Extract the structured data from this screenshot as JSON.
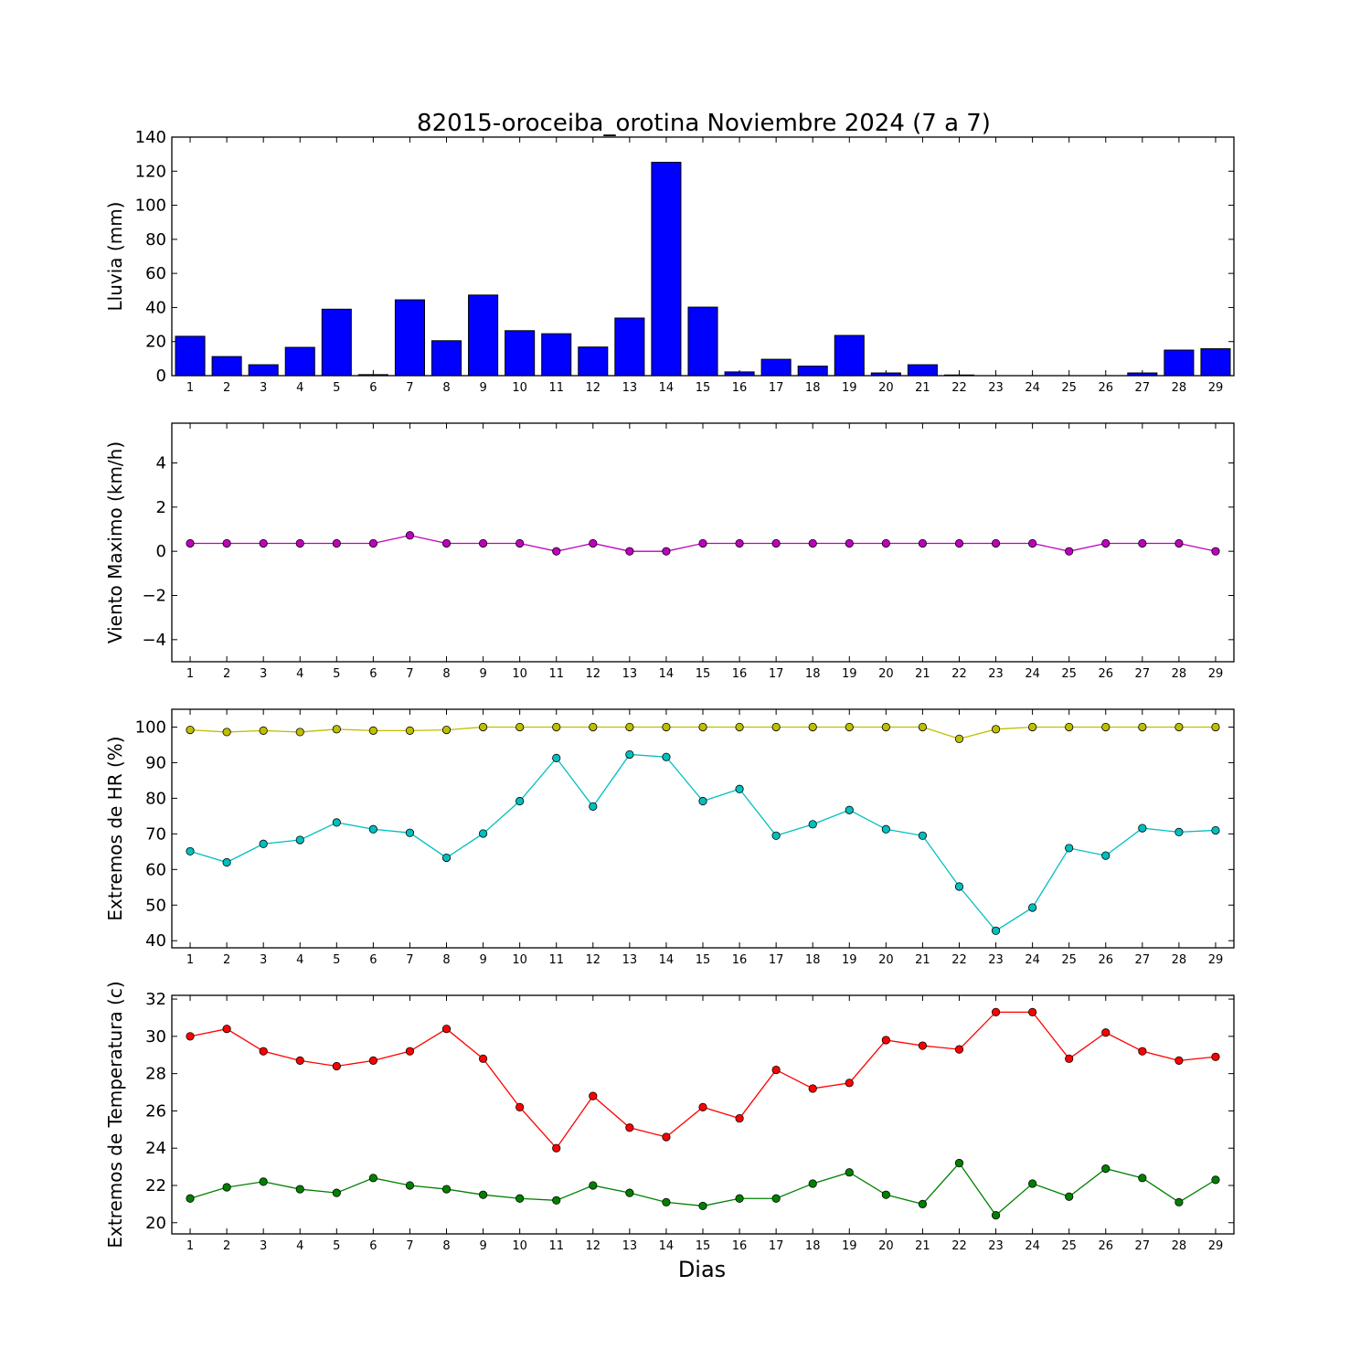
{
  "title": "82015-oroceiba_orotina Noviembre 2024  (7 a 7)",
  "xlabel": "Dias",
  "chart_data": [
    {
      "type": "bar",
      "ylabel": "Lluvia (mm)",
      "ylim": [
        0,
        140
      ],
      "yticks": [
        0,
        20,
        40,
        60,
        80,
        100,
        120,
        140
      ],
      "color": "#0000ff",
      "categories": [
        1,
        2,
        3,
        4,
        5,
        6,
        7,
        8,
        9,
        10,
        11,
        12,
        13,
        14,
        15,
        16,
        17,
        18,
        19,
        20,
        21,
        22,
        23,
        24,
        25,
        26,
        27,
        28,
        29
      ],
      "values": [
        23.1,
        11.2,
        6.4,
        16.6,
        39.0,
        0.6,
        44.5,
        20.5,
        47.3,
        26.4,
        24.6,
        16.8,
        33.8,
        125.2,
        40.2,
        2.2,
        9.6,
        5.6,
        23.6,
        1.6,
        6.4,
        0.4,
        0.0,
        0.0,
        0.0,
        0.0,
        1.6,
        15.0,
        15.8
      ]
    },
    {
      "type": "line",
      "ylabel": "Viento Maximo (km/h)",
      "ylim": [
        -5,
        5.8
      ],
      "yticks": [
        -4,
        -2,
        0,
        2,
        4
      ],
      "x": [
        1,
        2,
        3,
        4,
        5,
        6,
        7,
        8,
        9,
        10,
        11,
        12,
        13,
        14,
        15,
        16,
        17,
        18,
        19,
        20,
        21,
        22,
        23,
        24,
        25,
        26,
        27,
        28,
        29
      ],
      "series": [
        {
          "color": "#bf00bf",
          "values": [
            0.36,
            0.36,
            0.36,
            0.36,
            0.36,
            0.36,
            0.72,
            0.36,
            0.36,
            0.36,
            0.0,
            0.36,
            0.0,
            0.0,
            0.36,
            0.36,
            0.36,
            0.36,
            0.36,
            0.36,
            0.36,
            0.36,
            0.36,
            0.36,
            0.0,
            0.36,
            0.36,
            0.36,
            0.0
          ]
        }
      ]
    },
    {
      "type": "line",
      "ylabel": "Extremos de HR (%)",
      "ylim": [
        38,
        105
      ],
      "yticks": [
        40,
        50,
        60,
        70,
        80,
        90,
        100
      ],
      "x": [
        1,
        2,
        3,
        4,
        5,
        6,
        7,
        8,
        9,
        10,
        11,
        12,
        13,
        14,
        15,
        16,
        17,
        18,
        19,
        20,
        21,
        22,
        23,
        24,
        25,
        26,
        27,
        28,
        29
      ],
      "series": [
        {
          "color": "#bfbf00",
          "values": [
            99.2,
            98.6,
            99.0,
            98.6,
            99.4,
            99.0,
            99.0,
            99.2,
            100,
            100,
            100,
            100,
            100,
            100,
            100,
            100,
            100,
            100,
            100,
            100,
            100,
            96.7,
            99.4,
            100,
            100,
            100,
            100,
            100,
            100
          ]
        },
        {
          "color": "#00bfbf",
          "values": [
            65.1,
            62.0,
            67.2,
            68.3,
            73.2,
            71.3,
            70.3,
            63.3,
            70.1,
            79.2,
            91.3,
            77.7,
            92.3,
            91.6,
            79.2,
            82.6,
            69.5,
            72.7,
            76.7,
            71.3,
            69.5,
            55.2,
            42.8,
            49.3,
            66.0,
            63.9,
            71.6,
            70.5,
            71.0
          ]
        }
      ]
    },
    {
      "type": "line",
      "ylabel": "Extremos de Temperatura (c)",
      "ylim": [
        19.4,
        32.2
      ],
      "yticks": [
        20,
        22,
        24,
        26,
        28,
        30,
        32
      ],
      "x": [
        1,
        2,
        3,
        4,
        5,
        6,
        7,
        8,
        9,
        10,
        11,
        12,
        13,
        14,
        15,
        16,
        17,
        18,
        19,
        20,
        21,
        22,
        23,
        24,
        25,
        26,
        27,
        28,
        29
      ],
      "series": [
        {
          "color": "#ff0000",
          "values": [
            30.0,
            30.4,
            29.2,
            28.7,
            28.4,
            28.7,
            29.2,
            30.4,
            28.8,
            26.2,
            24.0,
            26.8,
            25.1,
            24.6,
            26.2,
            25.6,
            28.2,
            27.2,
            27.5,
            29.8,
            29.5,
            29.3,
            31.3,
            31.3,
            28.8,
            30.2,
            29.2,
            28.7,
            28.9
          ]
        },
        {
          "color": "#008000",
          "values": [
            21.3,
            21.9,
            22.2,
            21.8,
            21.6,
            22.4,
            22.0,
            21.8,
            21.5,
            21.3,
            21.2,
            22.0,
            21.6,
            21.1,
            20.9,
            21.3,
            21.3,
            22.1,
            22.7,
            21.5,
            21.0,
            23.2,
            20.4,
            22.1,
            21.4,
            22.9,
            22.4,
            21.1,
            22.3
          ]
        }
      ]
    }
  ]
}
